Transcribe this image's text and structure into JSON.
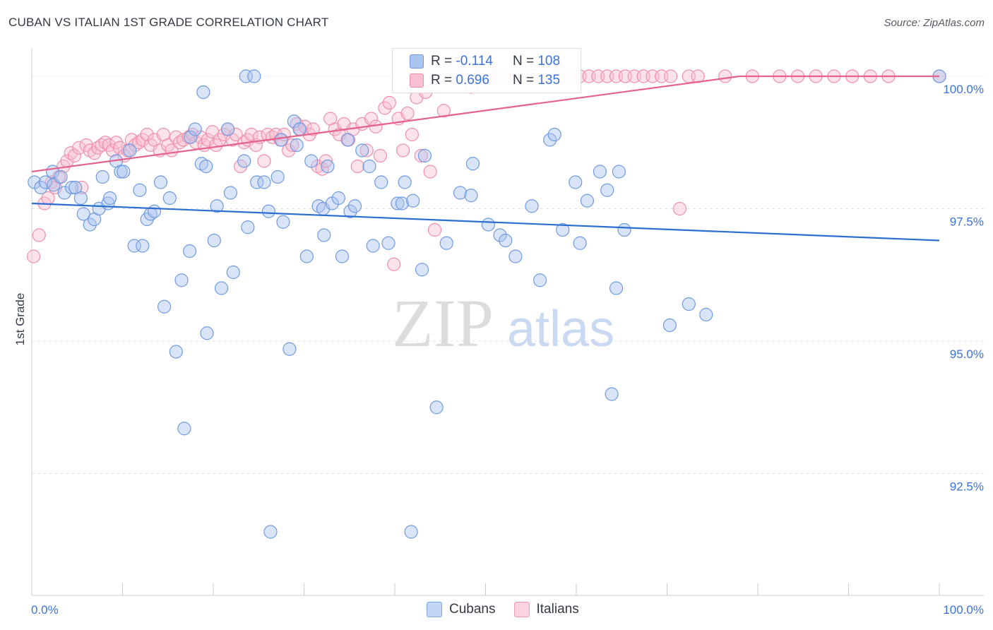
{
  "header": {
    "title": "CUBAN VS ITALIAN 1ST GRADE CORRELATION CHART",
    "source": "Source: ZipAtlas.com"
  },
  "watermark": {
    "zip": "ZIP",
    "atlas": "atlas"
  },
  "legend": {
    "rows": [
      {
        "r_label": "R =",
        "r_value": "-0.114",
        "n_label": "N =",
        "n_value": "108",
        "color": "#aac4f0",
        "stroke": "#6f9ae0"
      },
      {
        "r_label": "R =",
        "r_value": "0.696",
        "n_label": "N =",
        "n_value": "135",
        "color": "#f8bfd0",
        "stroke": "#ee8fab"
      }
    ]
  },
  "bottom_legend": {
    "cubans": "Cubans",
    "italians": "Italians"
  },
  "chart_data": {
    "type": "scatter",
    "title": "CUBAN VS ITALIAN 1ST GRADE CORRELATION CHART",
    "xlabel": "",
    "ylabel": "1st Grade",
    "xlim": [
      0,
      100
    ],
    "ylim": [
      90.2,
      100.4
    ],
    "x_tick_labels": [
      "0.0%",
      "100.0%"
    ],
    "y_ticks": [
      92.5,
      95.0,
      97.5,
      100.0
    ],
    "y_tick_labels": [
      "92.5%",
      "95.0%",
      "97.5%",
      "100.0%"
    ],
    "grid": true,
    "legend_position": "top-center",
    "series": [
      {
        "name": "Cubans",
        "color": "#6f9ae0",
        "fill": "rgba(170,196,240,0.45)",
        "line_color": "#2a6fcf",
        "trend": [
          [
            0,
            97.6
          ],
          [
            100,
            96.9
          ]
        ],
        "points": [
          [
            0.3,
            98.0
          ],
          [
            1.0,
            97.9
          ],
          [
            1.5,
            98.0
          ],
          [
            2.3,
            98.2
          ],
          [
            2.4,
            97.95
          ],
          [
            3.2,
            98.1
          ],
          [
            3.6,
            97.8
          ],
          [
            4.4,
            97.9
          ],
          [
            4.8,
            97.9
          ],
          [
            5.4,
            97.7
          ],
          [
            5.7,
            97.4
          ],
          [
            6.4,
            97.2
          ],
          [
            6.9,
            97.3
          ],
          [
            7.4,
            97.5
          ],
          [
            7.8,
            98.1
          ],
          [
            8.4,
            97.6
          ],
          [
            8.6,
            97.7
          ],
          [
            9.3,
            98.4
          ],
          [
            9.8,
            98.2
          ],
          [
            10.1,
            98.2
          ],
          [
            10.8,
            98.6
          ],
          [
            11.3,
            96.8
          ],
          [
            11.9,
            97.85
          ],
          [
            12.2,
            96.8
          ],
          [
            12.7,
            97.3
          ],
          [
            13.1,
            97.4
          ],
          [
            13.5,
            97.45
          ],
          [
            14.2,
            98.0
          ],
          [
            14.6,
            95.65
          ],
          [
            15.2,
            97.7
          ],
          [
            15.9,
            94.8
          ],
          [
            16.5,
            96.15
          ],
          [
            16.8,
            93.35
          ],
          [
            17.4,
            96.7
          ],
          [
            17.5,
            98.85
          ],
          [
            18.0,
            99.0
          ],
          [
            18.7,
            98.35
          ],
          [
            18.9,
            99.7
          ],
          [
            19.2,
            98.3
          ],
          [
            19.3,
            95.15
          ],
          [
            20.1,
            96.9
          ],
          [
            20.4,
            97.55
          ],
          [
            20.9,
            96.0
          ],
          [
            21.6,
            99.0
          ],
          [
            21.9,
            97.8
          ],
          [
            22.2,
            96.3
          ],
          [
            23.4,
            98.4
          ],
          [
            23.6,
            100.0
          ],
          [
            23.8,
            97.15
          ],
          [
            24.5,
            100.0
          ],
          [
            24.8,
            98.0
          ],
          [
            25.6,
            98.0
          ],
          [
            26.1,
            97.45
          ],
          [
            26.3,
            91.4
          ],
          [
            27.1,
            98.1
          ],
          [
            27.5,
            98.8
          ],
          [
            27.7,
            97.25
          ],
          [
            28.4,
            94.85
          ],
          [
            28.9,
            99.15
          ],
          [
            29.2,
            98.7
          ],
          [
            29.5,
            99.0
          ],
          [
            30.3,
            96.6
          ],
          [
            30.8,
            98.4
          ],
          [
            31.6,
            97.55
          ],
          [
            32.1,
            97.5
          ],
          [
            32.2,
            97.0
          ],
          [
            32.6,
            98.3
          ],
          [
            33.1,
            97.6
          ],
          [
            33.8,
            97.7
          ],
          [
            34.2,
            96.6
          ],
          [
            34.8,
            98.8
          ],
          [
            35.1,
            97.45
          ],
          [
            35.6,
            97.55
          ],
          [
            36.4,
            98.6
          ],
          [
            37.2,
            98.3
          ],
          [
            37.6,
            96.8
          ],
          [
            38.5,
            98.0
          ],
          [
            39.3,
            96.85
          ],
          [
            40.3,
            97.6
          ],
          [
            40.8,
            97.6
          ],
          [
            41.1,
            98.0
          ],
          [
            41.8,
            91.4
          ],
          [
            42.0,
            97.65
          ],
          [
            43.0,
            96.35
          ],
          [
            43.3,
            98.5
          ],
          [
            44.6,
            93.75
          ],
          [
            45.7,
            96.85
          ],
          [
            47.2,
            97.8
          ],
          [
            48.4,
            97.75
          ],
          [
            48.6,
            98.35
          ],
          [
            50.3,
            97.2
          ],
          [
            51.6,
            97.0
          ],
          [
            52.2,
            96.9
          ],
          [
            53.3,
            96.6
          ],
          [
            55.1,
            97.55
          ],
          [
            56.0,
            96.15
          ],
          [
            57.1,
            98.8
          ],
          [
            57.6,
            98.9
          ],
          [
            58.5,
            97.1
          ],
          [
            59.9,
            98.0
          ],
          [
            60.4,
            96.85
          ],
          [
            61.2,
            97.65
          ],
          [
            62.6,
            98.2
          ],
          [
            63.4,
            97.85
          ],
          [
            63.9,
            94.0
          ],
          [
            64.4,
            96.0
          ],
          [
            64.7,
            98.2
          ],
          [
            65.3,
            97.1
          ],
          [
            70.3,
            95.3
          ],
          [
            72.4,
            95.7
          ],
          [
            74.3,
            95.5
          ],
          [
            100.0,
            100.0
          ]
        ]
      },
      {
        "name": "Italians",
        "color": "#ee8fab",
        "fill": "rgba(248,191,208,0.45)",
        "line_color": "#e4628c",
        "trend": [
          [
            0,
            98.2
          ],
          [
            78,
            100.0
          ]
        ],
        "points": [
          [
            0.2,
            96.6
          ],
          [
            0.8,
            97.0
          ],
          [
            1.4,
            97.6
          ],
          [
            1.8,
            97.7
          ],
          [
            2.2,
            98.0
          ],
          [
            2.6,
            97.9
          ],
          [
            3.0,
            98.1
          ],
          [
            3.5,
            98.3
          ],
          [
            3.9,
            98.4
          ],
          [
            4.3,
            98.55
          ],
          [
            4.7,
            98.5
          ],
          [
            5.2,
            98.65
          ],
          [
            5.5,
            97.9
          ],
          [
            6.0,
            98.7
          ],
          [
            6.4,
            98.6
          ],
          [
            6.9,
            98.55
          ],
          [
            7.3,
            98.65
          ],
          [
            7.7,
            98.7
          ],
          [
            8.1,
            98.75
          ],
          [
            8.5,
            98.7
          ],
          [
            8.9,
            98.6
          ],
          [
            9.3,
            98.75
          ],
          [
            9.7,
            98.65
          ],
          [
            10.2,
            98.5
          ],
          [
            10.6,
            98.6
          ],
          [
            11.0,
            98.8
          ],
          [
            11.4,
            98.7
          ],
          [
            11.8,
            98.75
          ],
          [
            12.2,
            98.8
          ],
          [
            12.7,
            98.9
          ],
          [
            13.1,
            98.7
          ],
          [
            13.5,
            98.8
          ],
          [
            14.1,
            98.6
          ],
          [
            14.5,
            98.9
          ],
          [
            15.0,
            98.7
          ],
          [
            15.4,
            98.6
          ],
          [
            15.9,
            98.85
          ],
          [
            16.3,
            98.75
          ],
          [
            16.7,
            98.8
          ],
          [
            17.3,
            98.85
          ],
          [
            17.7,
            98.9
          ],
          [
            18.1,
            98.75
          ],
          [
            18.6,
            98.85
          ],
          [
            19.0,
            98.7
          ],
          [
            19.4,
            98.8
          ],
          [
            19.9,
            98.95
          ],
          [
            20.3,
            98.7
          ],
          [
            20.7,
            98.8
          ],
          [
            21.2,
            98.9
          ],
          [
            21.6,
            99.0
          ],
          [
            22.1,
            98.8
          ],
          [
            22.5,
            98.9
          ],
          [
            23.0,
            98.3
          ],
          [
            23.4,
            98.75
          ],
          [
            23.8,
            98.8
          ],
          [
            24.2,
            98.9
          ],
          [
            24.7,
            98.7
          ],
          [
            25.1,
            98.85
          ],
          [
            25.6,
            98.4
          ],
          [
            26.0,
            98.9
          ],
          [
            26.5,
            98.85
          ],
          [
            26.9,
            98.9
          ],
          [
            27.4,
            98.8
          ],
          [
            27.8,
            98.9
          ],
          [
            28.3,
            98.6
          ],
          [
            28.7,
            98.7
          ],
          [
            29.2,
            99.1
          ],
          [
            29.6,
            99.0
          ],
          [
            30.1,
            99.05
          ],
          [
            30.6,
            98.9
          ],
          [
            31.0,
            99.0
          ],
          [
            31.5,
            98.3
          ],
          [
            32.0,
            98.25
          ],
          [
            32.4,
            98.4
          ],
          [
            32.9,
            99.2
          ],
          [
            33.4,
            99.0
          ],
          [
            33.9,
            98.9
          ],
          [
            34.4,
            99.1
          ],
          [
            34.9,
            98.8
          ],
          [
            35.4,
            99.0
          ],
          [
            35.9,
            98.3
          ],
          [
            36.4,
            99.1
          ],
          [
            36.9,
            98.6
          ],
          [
            37.4,
            99.2
          ],
          [
            37.9,
            99.05
          ],
          [
            38.4,
            98.5
          ],
          [
            38.9,
            99.4
          ],
          [
            39.4,
            99.5
          ],
          [
            39.9,
            96.45
          ],
          [
            40.4,
            99.2
          ],
          [
            40.9,
            98.6
          ],
          [
            41.4,
            99.3
          ],
          [
            41.9,
            98.9
          ],
          [
            42.4,
            99.6
          ],
          [
            42.9,
            98.5
          ],
          [
            43.4,
            99.7
          ],
          [
            43.9,
            98.2
          ],
          [
            44.4,
            97.1
          ],
          [
            44.9,
            100.0
          ],
          [
            45.4,
            99.35
          ],
          [
            46.4,
            100.0
          ],
          [
            47.4,
            100.0
          ],
          [
            48.4,
            99.8
          ],
          [
            49.4,
            100.0
          ],
          [
            50.4,
            100.0
          ],
          [
            51.4,
            100.0
          ],
          [
            52.4,
            100.0
          ],
          [
            53.4,
            100.0
          ],
          [
            54.4,
            100.0
          ],
          [
            55.4,
            100.0
          ],
          [
            56.4,
            100.0
          ],
          [
            57.4,
            100.0
          ],
          [
            58.4,
            100.0
          ],
          [
            59.4,
            100.0
          ],
          [
            60.4,
            100.0
          ],
          [
            61.4,
            100.0
          ],
          [
            62.4,
            100.0
          ],
          [
            63.4,
            100.0
          ],
          [
            64.4,
            100.0
          ],
          [
            65.4,
            100.0
          ],
          [
            66.4,
            100.0
          ],
          [
            67.4,
            100.0
          ],
          [
            68.4,
            100.0
          ],
          [
            69.4,
            100.0
          ],
          [
            70.4,
            100.0
          ],
          [
            71.4,
            97.5
          ],
          [
            72.4,
            100.0
          ],
          [
            73.4,
            100.0
          ],
          [
            76.4,
            100.0
          ],
          [
            79.4,
            100.0
          ],
          [
            82.4,
            100.0
          ],
          [
            84.4,
            100.0
          ],
          [
            86.4,
            100.0
          ],
          [
            88.4,
            100.0
          ],
          [
            90.4,
            100.0
          ],
          [
            92.4,
            100.0
          ],
          [
            94.4,
            100.0
          ],
          [
            100.0,
            100.0
          ]
        ]
      }
    ]
  }
}
